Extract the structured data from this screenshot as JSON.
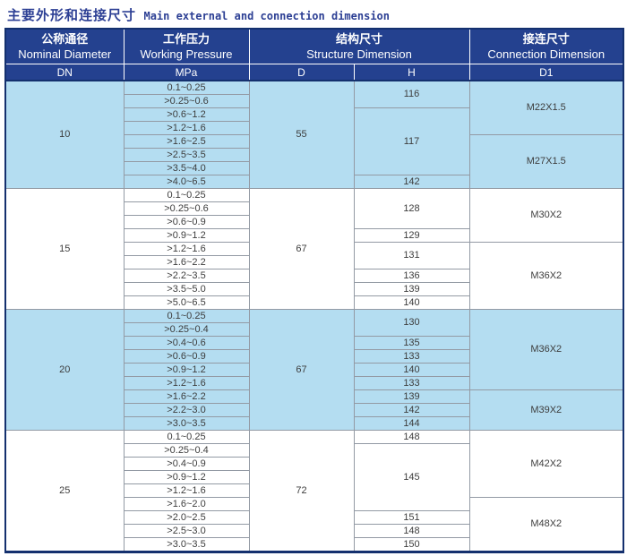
{
  "title": {
    "zh": "主要外形和连接尺寸",
    "en": "Main external and connection  dimension"
  },
  "colors": {
    "header_bg": "#24418f",
    "frame": "#14306e",
    "band_blue": "#b4ddf1",
    "grid": "#939aa4",
    "title_text": "#2c3f94",
    "cell_text": "#3d3d3d"
  },
  "table": {
    "group_headers": [
      {
        "zh": "公称通径",
        "en": "Nominal Diameter"
      },
      {
        "zh": "工作压力",
        "en": "Working Pressure"
      },
      {
        "zh": "结构尺寸",
        "en": "Structure Dimension"
      },
      {
        "zh": "接连尺寸",
        "en": "Connection Dimension"
      }
    ],
    "sub_headers": [
      "DN",
      "MPa",
      "D",
      "H",
      "D1"
    ],
    "sections": [
      {
        "dn": "10",
        "d": "55",
        "shade": "blue",
        "rows": [
          {
            "pressure": "0.1~0.25",
            "h": {
              "v": "116",
              "rs": 2
            },
            "d1": {
              "v": "M22X1.5",
              "rs": 4
            }
          },
          {
            "pressure": ">0.25~0.6"
          },
          {
            "pressure": ">0.6~1.2",
            "h": {
              "v": "117",
              "rs": 5
            }
          },
          {
            "pressure": ">1.2~1.6"
          },
          {
            "pressure": ">1.6~2.5",
            "d1": {
              "v": "M27X1.5",
              "rs": 4
            }
          },
          {
            "pressure": ">2.5~3.5"
          },
          {
            "pressure": ">3.5~4.0"
          },
          {
            "pressure": ">4.0~6.5",
            "h": {
              "v": "142",
              "rs": 1
            }
          }
        ]
      },
      {
        "dn": "15",
        "d": "67",
        "shade": "white",
        "rows": [
          {
            "pressure": "0.1~0.25",
            "h": {
              "v": "128",
              "rs": 3
            },
            "d1": {
              "v": "M30X2",
              "rs": 4
            }
          },
          {
            "pressure": ">0.25~0.6"
          },
          {
            "pressure": ">0.6~0.9"
          },
          {
            "pressure": ">0.9~1.2",
            "h": {
              "v": "129",
              "rs": 1
            }
          },
          {
            "pressure": ">1.2~1.6",
            "h": {
              "v": "131",
              "rs": 2
            },
            "d1": {
              "v": "M36X2",
              "rs": 5
            }
          },
          {
            "pressure": ">1.6~2.2"
          },
          {
            "pressure": ">2.2~3.5",
            "h": {
              "v": "136",
              "rs": 1
            }
          },
          {
            "pressure": ">3.5~5.0",
            "h": {
              "v": "139",
              "rs": 1
            }
          },
          {
            "pressure": ">5.0~6.5",
            "h": {
              "v": "140",
              "rs": 1
            }
          }
        ]
      },
      {
        "dn": "20",
        "d": "67",
        "shade": "blue",
        "rows": [
          {
            "pressure": "0.1~0.25",
            "h": {
              "v": "130",
              "rs": 2
            },
            "d1": {
              "v": "M36X2",
              "rs": 6
            }
          },
          {
            "pressure": ">0.25~0.4"
          },
          {
            "pressure": ">0.4~0.6",
            "h": {
              "v": "135",
              "rs": 1
            }
          },
          {
            "pressure": ">0.6~0.9",
            "h": {
              "v": "133",
              "rs": 1
            }
          },
          {
            "pressure": ">0.9~1.2",
            "h": {
              "v": "140",
              "rs": 1
            }
          },
          {
            "pressure": ">1.2~1.6",
            "h": {
              "v": "133",
              "rs": 1
            }
          },
          {
            "pressure": ">1.6~2.2",
            "h": {
              "v": "139",
              "rs": 1
            },
            "d1": {
              "v": "M39X2",
              "rs": 3
            }
          },
          {
            "pressure": ">2.2~3.0",
            "h": {
              "v": "142",
              "rs": 1
            }
          },
          {
            "pressure": ">3.0~3.5",
            "h": {
              "v": "144",
              "rs": 1
            }
          }
        ]
      },
      {
        "dn": "25",
        "d": "72",
        "shade": "white",
        "rows": [
          {
            "pressure": "0.1~0.25",
            "h": {
              "v": "148",
              "rs": 1
            },
            "d1": {
              "v": "M42X2",
              "rs": 5
            }
          },
          {
            "pressure": ">0.25~0.4",
            "h": {
              "v": "145",
              "rs": 5
            }
          },
          {
            "pressure": ">0.4~0.9"
          },
          {
            "pressure": ">0.9~1.2"
          },
          {
            "pressure": ">1.2~1.6"
          },
          {
            "pressure": ">1.6~2.0",
            "d1": {
              "v": "M48X2",
              "rs": 4
            }
          },
          {
            "pressure": ">2.0~2.5",
            "h": {
              "v": "151",
              "rs": 1
            }
          },
          {
            "pressure": ">2.5~3.0",
            "h": {
              "v": "148",
              "rs": 1
            }
          },
          {
            "pressure": ">3.0~3.5",
            "h": {
              "v": "150",
              "rs": 1
            }
          }
        ]
      }
    ]
  }
}
